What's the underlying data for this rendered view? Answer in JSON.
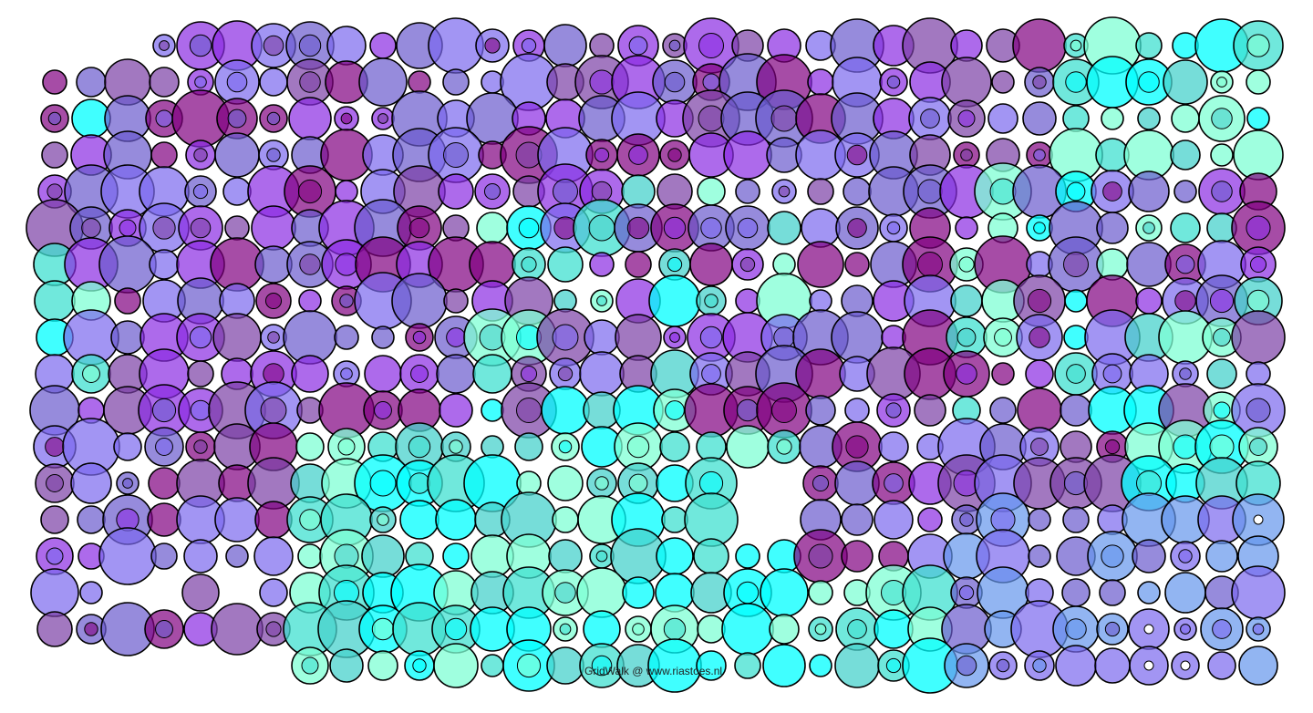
{
  "credit": "GridWalk @ www.riastoes.nl",
  "palette": {
    "background": "#ffffff",
    "outline": "#000000",
    "purple_dark": "#800080",
    "purple_mid": "#7b3fa5",
    "blue_violet": "#8a2be2",
    "slate_blue": "#6a5acd",
    "medium_slate": "#7b68ee",
    "cornflower": "#6495ed",
    "aquamarine": "#7fffd4",
    "turquoise": "#40e0d0",
    "medium_turquoise": "#48d1cc",
    "cyan": "#00ffff"
  }
}
